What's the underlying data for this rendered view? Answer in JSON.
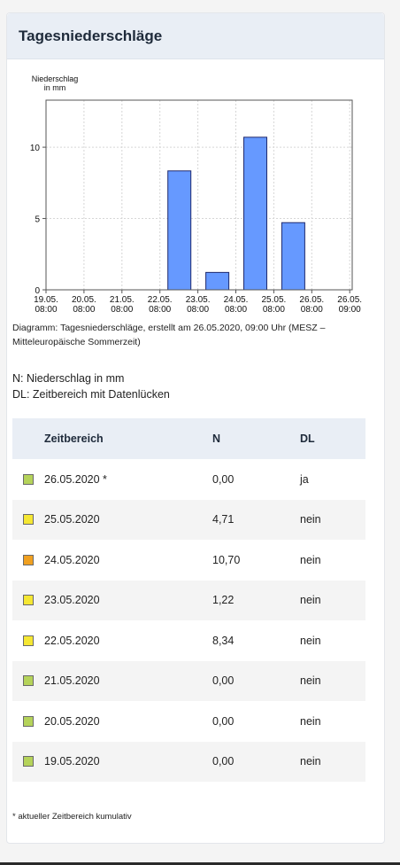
{
  "panel": {
    "title": "Tagesniederschläge"
  },
  "chart_data": {
    "type": "bar",
    "ylabel_lines": [
      "Niederschlag",
      "in mm"
    ],
    "xlabel": "",
    "title": "",
    "ylim": [
      0,
      13.3
    ],
    "yticks": [
      0,
      5,
      10
    ],
    "x_tick_labels": [
      [
        "19.05.",
        "08:00"
      ],
      [
        "20.05.",
        "08:00"
      ],
      [
        "21.05.",
        "08:00"
      ],
      [
        "22.05.",
        "08:00"
      ],
      [
        "23.05.",
        "08:00"
      ],
      [
        "24.05.",
        "08:00"
      ],
      [
        "25.05.",
        "08:00"
      ],
      [
        "26.05.",
        "08:00"
      ],
      [
        "26.05.",
        "09:00"
      ]
    ],
    "categories": [
      "19.05.",
      "20.05.",
      "21.05.",
      "22.05.",
      "23.05.",
      "24.05.",
      "25.05.",
      "26.05."
    ],
    "values": [
      0,
      0,
      0,
      8.34,
      1.22,
      10.7,
      4.71,
      0
    ],
    "bar_color": "#6699ff",
    "grid": true
  },
  "caption": "Diagramm: Tagesniederschläge, erstellt am 26.05.2020, 09:00 Uhr (MESZ – Mitteleuropäische Sommerzeit)",
  "legend": {
    "n": "N: Niederschlag in mm",
    "dl": "DL: Zeitbereich mit Datenlücken"
  },
  "table": {
    "headers": {
      "period": "Zeitbereich",
      "n": "N",
      "dl": "DL"
    },
    "rows": [
      {
        "color": "#b5d35a",
        "date": "26.05.2020 *",
        "n": "0,00",
        "dl": "ja"
      },
      {
        "color": "#f5e733",
        "date": "25.05.2020",
        "n": "4,71",
        "dl": "nein"
      },
      {
        "color": "#f0a020",
        "date": "24.05.2020",
        "n": "10,70",
        "dl": "nein"
      },
      {
        "color": "#f5e733",
        "date": "23.05.2020",
        "n": "1,22",
        "dl": "nein"
      },
      {
        "color": "#f5e733",
        "date": "22.05.2020",
        "n": "8,34",
        "dl": "nein"
      },
      {
        "color": "#b5d35a",
        "date": "21.05.2020",
        "n": "0,00",
        "dl": "nein"
      },
      {
        "color": "#b5d35a",
        "date": "20.05.2020",
        "n": "0,00",
        "dl": "nein"
      },
      {
        "color": "#b5d35a",
        "date": "19.05.2020",
        "n": "0,00",
        "dl": "nein"
      }
    ]
  },
  "footnote": "* aktueller Zeitbereich kumulativ"
}
